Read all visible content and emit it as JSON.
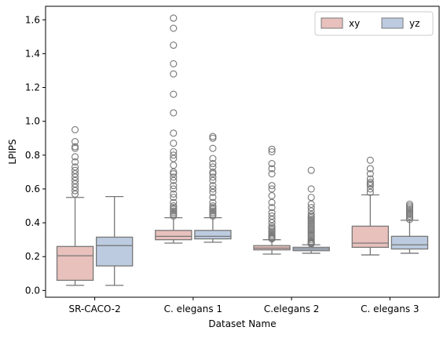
{
  "chart_data": {
    "type": "box",
    "xlabel": "Dataset Name",
    "ylabel": "LPIPS",
    "ylim": [
      -0.04,
      1.68
    ],
    "yticks": [
      0.0,
      0.2,
      0.4,
      0.6,
      0.8,
      1.0,
      1.2,
      1.4,
      1.6
    ],
    "ytick_labels": [
      "0.0",
      "0.2",
      "0.4",
      "0.6",
      "0.8",
      "1.0",
      "1.2",
      "1.4",
      "1.6"
    ],
    "categories": [
      "SR-CACO-2",
      "C. elegans 1",
      "C.elegans 2",
      "C. elegans 3"
    ],
    "legend_position": "top-right",
    "grid": false,
    "series": [
      {
        "name": "xy",
        "color": "#e8c0bc",
        "edge_color": "#777777",
        "boxes": [
          {
            "q1": 0.06,
            "median": 0.205,
            "q3": 0.26,
            "whisker_low": 0.03,
            "whisker_high": 0.55,
            "outliers": [
              0.57,
              0.59,
              0.61,
              0.63,
              0.65,
              0.67,
              0.69,
              0.71,
              0.73,
              0.76,
              0.79,
              0.84,
              0.85,
              0.88,
              0.95
            ]
          },
          {
            "q1": 0.3,
            "median": 0.32,
            "q3": 0.355,
            "whisker_low": 0.28,
            "whisker_high": 0.43,
            "outliers": [
              0.44,
              0.45,
              0.46,
              0.47,
              0.48,
              0.49,
              0.5,
              0.52,
              0.55,
              0.57,
              0.6,
              0.62,
              0.65,
              0.67,
              0.69,
              0.7,
              0.74,
              0.78,
              0.8,
              0.82,
              0.87,
              0.93,
              1.05,
              1.16,
              1.28,
              1.34,
              1.45,
              1.55,
              1.61
            ]
          },
          {
            "q1": 0.24,
            "median": 0.25,
            "q3": 0.265,
            "whisker_low": 0.215,
            "whisker_high": 0.3,
            "outliers": [
              0.305,
              0.31,
              0.315,
              0.32,
              0.33,
              0.34,
              0.35,
              0.36,
              0.37,
              0.38,
              0.4,
              0.42,
              0.44,
              0.46,
              0.49,
              0.52,
              0.56,
              0.6,
              0.62,
              0.69,
              0.72,
              0.75,
              0.82,
              0.835
            ]
          },
          {
            "q1": 0.255,
            "median": 0.28,
            "q3": 0.38,
            "whisker_low": 0.21,
            "whisker_high": 0.565,
            "outliers": [
              0.58,
              0.6,
              0.62,
              0.63,
              0.64,
              0.66,
              0.69,
              0.72,
              0.77
            ]
          }
        ]
      },
      {
        "name": "yz",
        "color": "#bccbe0",
        "edge_color": "#777777",
        "boxes": [
          {
            "q1": 0.145,
            "median": 0.265,
            "q3": 0.315,
            "whisker_low": 0.03,
            "whisker_high": 0.555,
            "outliers": []
          },
          {
            "q1": 0.305,
            "median": 0.32,
            "q3": 0.355,
            "whisker_low": 0.285,
            "whisker_high": 0.43,
            "outliers": [
              0.44,
              0.45,
              0.46,
              0.47,
              0.48,
              0.49,
              0.5,
              0.52,
              0.55,
              0.58,
              0.6,
              0.62,
              0.65,
              0.67,
              0.69,
              0.7,
              0.73,
              0.75,
              0.78,
              0.84,
              0.9,
              0.91
            ]
          },
          {
            "q1": 0.235,
            "median": 0.245,
            "q3": 0.255,
            "whisker_low": 0.22,
            "whisker_high": 0.27,
            "outliers": [
              0.275,
              0.28,
              0.285,
              0.29,
              0.3,
              0.31,
              0.32,
              0.33,
              0.34,
              0.35,
              0.36,
              0.37,
              0.38,
              0.39,
              0.4,
              0.41,
              0.42,
              0.43,
              0.44,
              0.45,
              0.47,
              0.49,
              0.51,
              0.55,
              0.6,
              0.71
            ]
          },
          {
            "q1": 0.245,
            "median": 0.27,
            "q3": 0.32,
            "whisker_low": 0.22,
            "whisker_high": 0.415,
            "outliers": [
              0.42,
              0.43,
              0.44,
              0.45,
              0.46,
              0.47,
              0.48,
              0.49,
              0.5,
              0.51
            ]
          }
        ]
      }
    ]
  }
}
